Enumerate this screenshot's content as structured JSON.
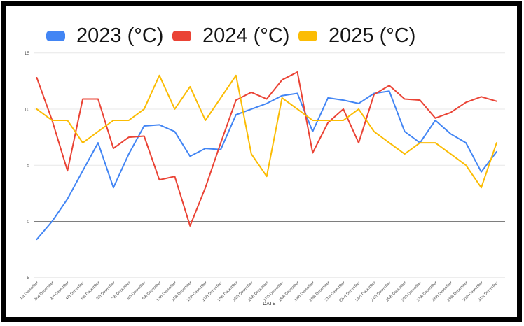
{
  "legend": {
    "items": [
      {
        "label": "2023 (°C)",
        "color": "#4285f4"
      },
      {
        "label": "2024 (°C)",
        "color": "#ea4335"
      },
      {
        "label": "2025 (°C)",
        "color": "#fbbc04"
      }
    ]
  },
  "chart_data": {
    "type": "line",
    "title": "",
    "xlabel": "DATE",
    "ylabel": "",
    "ylim": [
      -5,
      15
    ],
    "yticks": [
      15,
      10,
      5,
      0,
      -5
    ],
    "grid": true,
    "legend_position": "top",
    "categories": [
      "1st December",
      "2nd December",
      "3rd December",
      "4th December",
      "5th December",
      "6th December",
      "7th December",
      "8th December",
      "9th December",
      "10th December",
      "11th December",
      "12th December",
      "13th December",
      "14th December",
      "15th December",
      "16th December",
      "17th December",
      "18th December",
      "19th December",
      "20th December",
      "21st December",
      "22nd December",
      "23rd December",
      "24th December",
      "25th December",
      "26th December",
      "27th December",
      "28th December",
      "29th December",
      "30th December",
      "31st December"
    ],
    "series": [
      {
        "name": "2023 (°C)",
        "color": "#4285f4",
        "values": [
          -1.6,
          0,
          2,
          4.5,
          7,
          3,
          6,
          8.5,
          8.6,
          8,
          5.8,
          6.5,
          6.4,
          9.5,
          10,
          10.5,
          11.2,
          11.4,
          8,
          11,
          10.8,
          10.5,
          11.4,
          11.6,
          8,
          7,
          9,
          7.8,
          7,
          4.4,
          6.2
        ]
      },
      {
        "name": "2024 (°C)",
        "color": "#ea4335",
        "values": [
          12.8,
          9,
          4.5,
          10.9,
          10.9,
          6.5,
          7.5,
          7.6,
          3.7,
          4,
          -0.4,
          3,
          7,
          10.8,
          11.5,
          10.9,
          12.6,
          13.3,
          6.1,
          8.8,
          10,
          7,
          11.3,
          12.1,
          10.9,
          10.8,
          9.2,
          9.7,
          10.6,
          11.1,
          10.7
        ]
      },
      {
        "name": "2025 (°C)",
        "color": "#fbbc04",
        "values": [
          10,
          9,
          9,
          7,
          8,
          9,
          9,
          10,
          13,
          10,
          12,
          9,
          11,
          13,
          6,
          4,
          11,
          10,
          9,
          9,
          9,
          10,
          8,
          7,
          6,
          7,
          7,
          6,
          5,
          3,
          7
        ]
      }
    ]
  }
}
